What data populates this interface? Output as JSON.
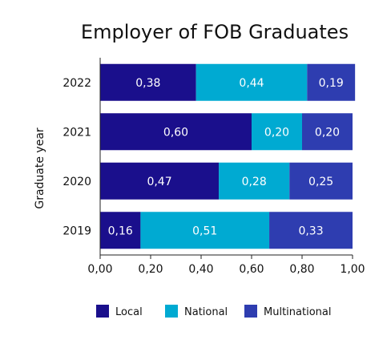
{
  "chart_data": {
    "type": "bar",
    "orientation": "horizontal",
    "stacked": true,
    "title": "Employer of FOB Graduates",
    "xlabel": "",
    "ylabel": "Graduate year",
    "xlim": [
      0,
      1
    ],
    "grid": false,
    "legend_position": "bottom",
    "categories": [
      "2022",
      "2021",
      "2020",
      "2019"
    ],
    "x_ticks": [
      "0,00",
      "0,20",
      "0,40",
      "0,60",
      "0,80",
      "1,00"
    ],
    "series": [
      {
        "name": "Local",
        "color": "#1a0f8c",
        "values": [
          0.38,
          0.6,
          0.47,
          0.16
        ],
        "labels": [
          "0,38",
          "0,60",
          "0,47",
          "0,16"
        ]
      },
      {
        "name": "National",
        "color": "#00aad2",
        "values": [
          0.44,
          0.2,
          0.28,
          0.51
        ],
        "labels": [
          "0,44",
          "0,20",
          "0,28",
          "0,51"
        ]
      },
      {
        "name": "Multinational",
        "color": "#2e3db0",
        "values": [
          0.19,
          0.2,
          0.25,
          0.33
        ],
        "labels": [
          "0,19",
          "0,20",
          "0,25",
          "0,33"
        ]
      }
    ]
  }
}
